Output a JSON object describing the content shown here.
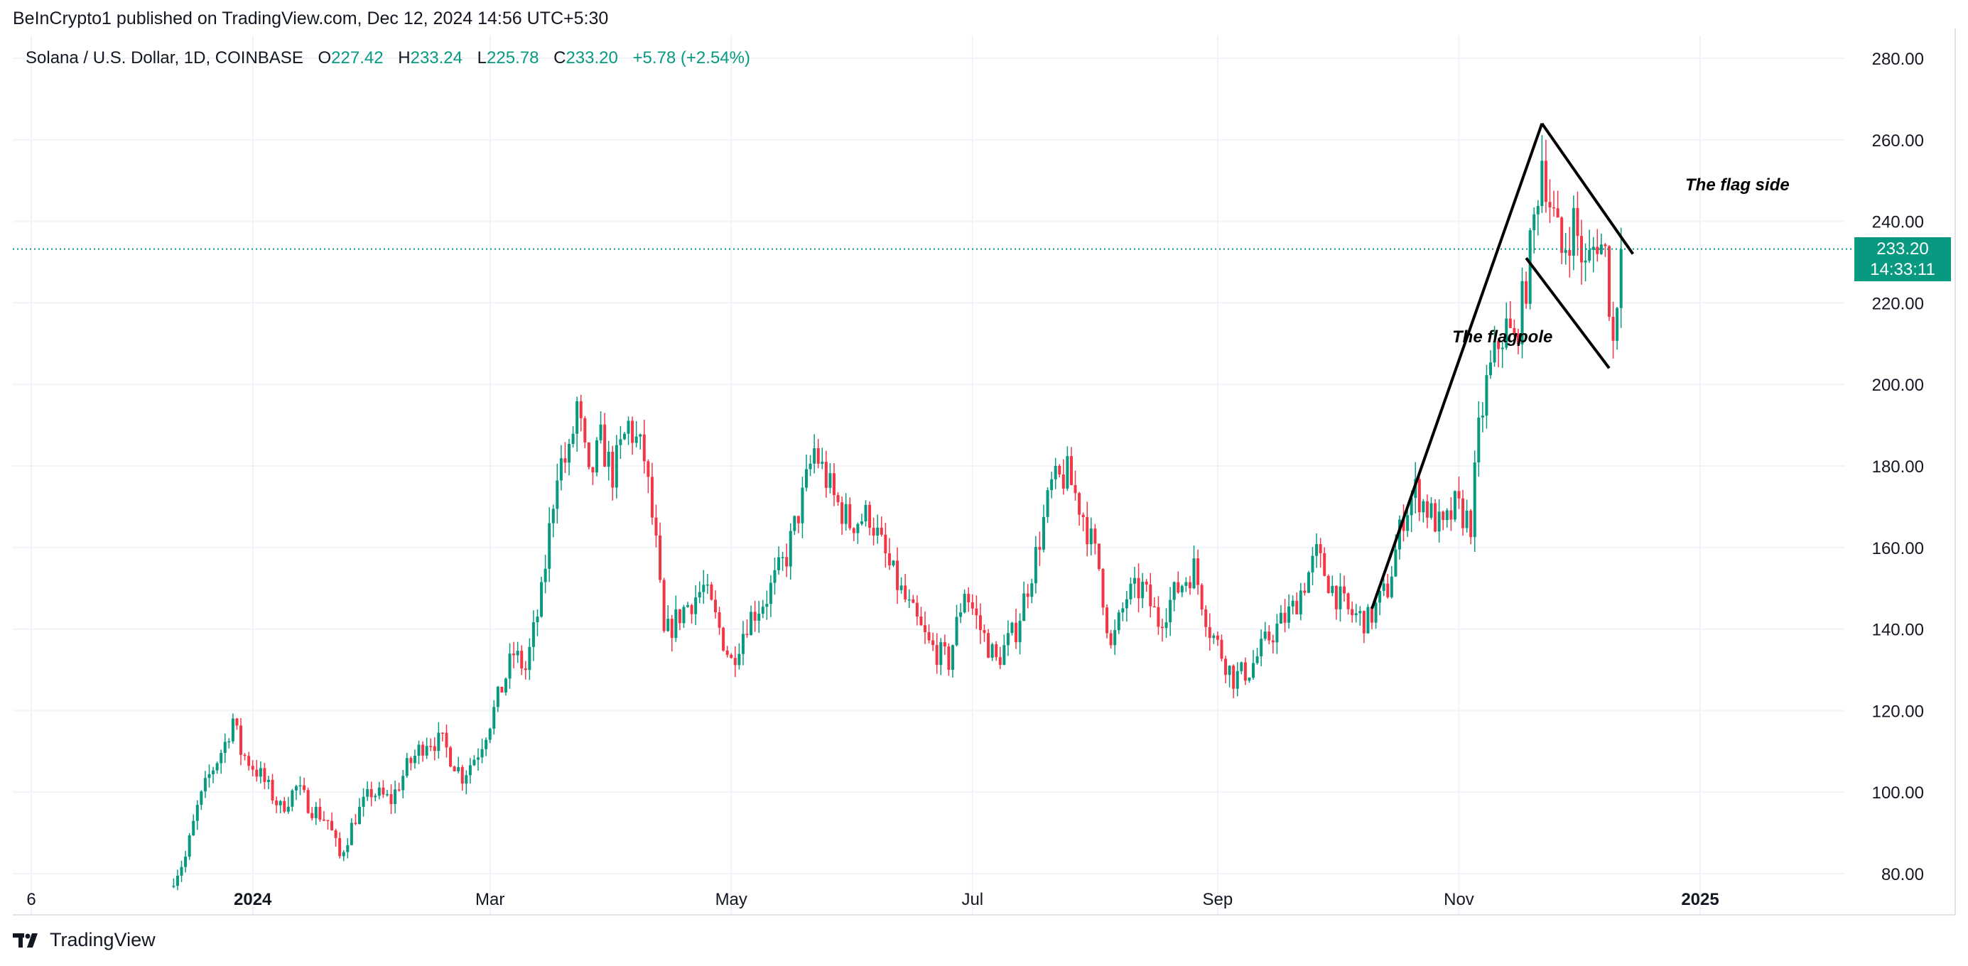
{
  "publisher": "BeInCrypto1 published on TradingView.com, Dec 12, 2024 14:56 UTC+5:30",
  "legend": {
    "symbol": "Solana / U.S. Dollar, 1D, COINBASE",
    "o_label": "O",
    "o_value": "227.42",
    "h_label": "H",
    "h_value": "233.24",
    "l_label": "L",
    "l_value": "225.78",
    "c_label": "C",
    "c_value": "233.20",
    "change": "+5.78 (+2.54%)"
  },
  "price_tag": {
    "price": "233.20",
    "countdown": "14:33:11"
  },
  "brand": {
    "name": "TradingView"
  },
  "colors": {
    "up": "#089981",
    "down": "#f23645",
    "grid": "#f0f3fa",
    "text": "#131722",
    "lines": "#000000"
  },
  "chart_data": {
    "type": "candlestick",
    "title": "Solana / U.S. Dollar, 1D, COINBASE",
    "xlabel": "",
    "ylabel": "",
    "ylim": [
      80,
      280
    ],
    "yticks": [
      80,
      100,
      120,
      140,
      160,
      180,
      200,
      220,
      240,
      260,
      280
    ],
    "ytick_labels": [
      "80.00",
      "100.00",
      "120.00",
      "140.00",
      "160.00",
      "180.00",
      "200.00",
      "220.00",
      "240.00",
      "260.00",
      "280.00"
    ],
    "xlim": [
      "2023-11-06",
      "2025-01-31"
    ],
    "xticks": [
      {
        "date": "2023-11-06",
        "label": "6",
        "bold": false
      },
      {
        "date": "2024-01-01",
        "label": "2024",
        "bold": true
      },
      {
        "date": "2024-03-01",
        "label": "Mar",
        "bold": false
      },
      {
        "date": "2024-05-01",
        "label": "May",
        "bold": false
      },
      {
        "date": "2024-07-01",
        "label": "Jul",
        "bold": false
      },
      {
        "date": "2024-09-01",
        "label": "Sep",
        "bold": false
      },
      {
        "date": "2024-11-01",
        "label": "Nov",
        "bold": false
      },
      {
        "date": "2025-01-01",
        "label": "2025",
        "bold": true
      }
    ],
    "last_price": 233.2,
    "candles_start_date": "2023-12-12",
    "candles_end_date": "2024-12-12",
    "price_path": [
      [
        "2023-12-12",
        79
      ],
      [
        "2023-12-15",
        84
      ],
      [
        "2023-12-18",
        96
      ],
      [
        "2023-12-21",
        104
      ],
      [
        "2023-12-25",
        112
      ],
      [
        "2023-12-27",
        118
      ],
      [
        "2023-12-29",
        110
      ],
      [
        "2024-01-03",
        104
      ],
      [
        "2024-01-08",
        96
      ],
      [
        "2024-01-12",
        101
      ],
      [
        "2024-01-16",
        96
      ],
      [
        "2024-01-20",
        93
      ],
      [
        "2024-01-23",
        84
      ],
      [
        "2024-01-27",
        94
      ],
      [
        "2024-01-31",
        100
      ],
      [
        "2024-02-05",
        98
      ],
      [
        "2024-02-09",
        106
      ],
      [
        "2024-02-14",
        113
      ],
      [
        "2024-02-18",
        112
      ],
      [
        "2024-02-23",
        104
      ],
      [
        "2024-02-27",
        110
      ],
      [
        "2024-03-02",
        120
      ],
      [
        "2024-03-07",
        134
      ],
      [
        "2024-03-10",
        130
      ],
      [
        "2024-03-14",
        148
      ],
      [
        "2024-03-18",
        180
      ],
      [
        "2024-03-21",
        182
      ],
      [
        "2024-03-23",
        195
      ],
      [
        "2024-03-26",
        176
      ],
      [
        "2024-03-29",
        186
      ],
      [
        "2024-04-01",
        178
      ],
      [
        "2024-04-05",
        190
      ],
      [
        "2024-04-09",
        182
      ],
      [
        "2024-04-12",
        160
      ],
      [
        "2024-04-14",
        138
      ],
      [
        "2024-04-19",
        145
      ],
      [
        "2024-04-24",
        150
      ],
      [
        "2024-04-28",
        140
      ],
      [
        "2024-05-01",
        132
      ],
      [
        "2024-05-05",
        142
      ],
      [
        "2024-05-10",
        148
      ],
      [
        "2024-05-15",
        158
      ],
      [
        "2024-05-19",
        172
      ],
      [
        "2024-05-22",
        184
      ],
      [
        "2024-05-27",
        172
      ],
      [
        "2024-05-31",
        166
      ],
      [
        "2024-06-05",
        168
      ],
      [
        "2024-06-10",
        155
      ],
      [
        "2024-06-15",
        145
      ],
      [
        "2024-06-20",
        136
      ],
      [
        "2024-06-25",
        132
      ],
      [
        "2024-06-29",
        150
      ],
      [
        "2024-07-03",
        140
      ],
      [
        "2024-07-07",
        132
      ],
      [
        "2024-07-12",
        140
      ],
      [
        "2024-07-17",
        158
      ],
      [
        "2024-07-21",
        175
      ],
      [
        "2024-07-25",
        178
      ],
      [
        "2024-07-29",
        168
      ],
      [
        "2024-08-02",
        155
      ],
      [
        "2024-08-05",
        135
      ],
      [
        "2024-08-09",
        148
      ],
      [
        "2024-08-13",
        150
      ],
      [
        "2024-08-17",
        142
      ],
      [
        "2024-08-22",
        150
      ],
      [
        "2024-08-26",
        155
      ],
      [
        "2024-08-30",
        140
      ],
      [
        "2024-09-05",
        128
      ],
      [
        "2024-09-09",
        130
      ],
      [
        "2024-09-14",
        138
      ],
      [
        "2024-09-20",
        145
      ],
      [
        "2024-09-26",
        158
      ],
      [
        "2024-09-30",
        150
      ],
      [
        "2024-10-04",
        144
      ],
      [
        "2024-10-09",
        142
      ],
      [
        "2024-10-14",
        150
      ],
      [
        "2024-10-18",
        168
      ],
      [
        "2024-10-21",
        174
      ],
      [
        "2024-10-25",
        168
      ],
      [
        "2024-10-28",
        164
      ],
      [
        "2024-10-31",
        170
      ],
      [
        "2024-11-04",
        166
      ],
      [
        "2024-11-06",
        188
      ],
      [
        "2024-11-08",
        200
      ],
      [
        "2024-11-11",
        210
      ],
      [
        "2024-11-13",
        214
      ],
      [
        "2024-11-15",
        210
      ],
      [
        "2024-11-18",
        225
      ],
      [
        "2024-11-20",
        240
      ],
      [
        "2024-11-22",
        256
      ],
      [
        "2024-11-24",
        245
      ],
      [
        "2024-11-27",
        232
      ],
      [
        "2024-11-30",
        240
      ],
      [
        "2024-12-03",
        228
      ],
      [
        "2024-12-06",
        236
      ],
      [
        "2024-12-08",
        232
      ],
      [
        "2024-12-10",
        210
      ],
      [
        "2024-12-11",
        222
      ],
      [
        "2024-12-12",
        233.2
      ]
    ],
    "annotations": {
      "flagpole_label": "The flagpole",
      "flag_label": "The flag side",
      "flagpole_line": [
        [
          "2024-10-10",
          145
        ],
        [
          "2024-11-22",
          264
        ]
      ],
      "flag_upper_line": [
        [
          "2024-11-22",
          264
        ],
        [
          "2024-12-15",
          232
        ]
      ],
      "flag_lower_line": [
        [
          "2024-11-18",
          231
        ],
        [
          "2024-12-09",
          204
        ]
      ]
    }
  }
}
